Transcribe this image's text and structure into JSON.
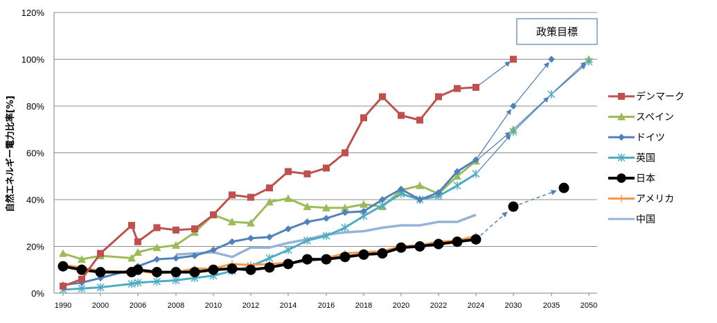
{
  "chart_data": {
    "type": "line",
    "ylabel": "自然エネルギー電力比率[%]",
    "y_ticks": [
      "0%",
      "20%",
      "40%",
      "60%",
      "80%",
      "100%",
      "120%"
    ],
    "ylim": [
      0,
      120
    ],
    "x_ticks": [
      "1990",
      "2000",
      "2006",
      "2008",
      "2010",
      "2012",
      "2014",
      "2016",
      "2018",
      "2020",
      "2022",
      "2024",
      "2030",
      "2035",
      "2050"
    ],
    "grid": "horizontal",
    "legend_position": "right",
    "annotation": "政策目標",
    "series": [
      {
        "name": "デンマーク",
        "color": "#c0504d",
        "marker": "square",
        "points": [
          [
            1990,
            3
          ],
          [
            1995,
            6
          ],
          [
            2000,
            17
          ],
          [
            2005,
            29
          ],
          [
            2006,
            22
          ],
          [
            2007,
            28
          ],
          [
            2008,
            27
          ],
          [
            2009,
            27.5
          ],
          [
            2010,
            33.5
          ],
          [
            2011,
            42
          ],
          [
            2012,
            41
          ],
          [
            2013,
            45
          ],
          [
            2014,
            52
          ],
          [
            2015,
            51
          ],
          [
            2016,
            53.5
          ],
          [
            2017,
            60
          ],
          [
            2018,
            75
          ],
          [
            2019,
            84
          ],
          [
            2020,
            76
          ],
          [
            2021,
            74
          ],
          [
            2022,
            84
          ],
          [
            2023,
            87.5
          ],
          [
            2024,
            88
          ]
        ],
        "targets": [
          [
            2030,
            100
          ]
        ]
      },
      {
        "name": "スペイン",
        "color": "#9bbb59",
        "marker": "triangle",
        "points": [
          [
            1990,
            17
          ],
          [
            1995,
            14.5
          ],
          [
            2000,
            16
          ],
          [
            2005,
            15
          ],
          [
            2006,
            17.5
          ],
          [
            2007,
            19.5
          ],
          [
            2008,
            20.5
          ],
          [
            2009,
            26
          ],
          [
            2010,
            33.5
          ],
          [
            2011,
            30.5
          ],
          [
            2012,
            30
          ],
          [
            2013,
            39
          ],
          [
            2014,
            40.5
          ],
          [
            2015,
            37
          ],
          [
            2016,
            36.5
          ],
          [
            2017,
            36.5
          ],
          [
            2018,
            38
          ],
          [
            2019,
            37
          ],
          [
            2020,
            44
          ],
          [
            2021,
            46
          ],
          [
            2022,
            42.5
          ],
          [
            2023,
            50
          ],
          [
            2024,
            56.5
          ]
        ],
        "targets": [
          [
            2030,
            70
          ],
          [
            2050,
            100
          ]
        ]
      },
      {
        "name": "ドイツ",
        "color": "#4f81bd",
        "marker": "diamond",
        "points": [
          [
            1990,
            3.5
          ],
          [
            1995,
            4.5
          ],
          [
            2000,
            6.5
          ],
          [
            2005,
            10
          ],
          [
            2006,
            11.5
          ],
          [
            2007,
            14.5
          ],
          [
            2008,
            15
          ],
          [
            2009,
            16
          ],
          [
            2010,
            18.5
          ],
          [
            2011,
            22
          ],
          [
            2012,
            23.5
          ],
          [
            2013,
            24
          ],
          [
            2014,
            27.5
          ],
          [
            2015,
            30.5
          ],
          [
            2016,
            32
          ],
          [
            2017,
            34.5
          ],
          [
            2018,
            35
          ],
          [
            2019,
            40
          ],
          [
            2020,
            44.5
          ],
          [
            2021,
            40
          ],
          [
            2022,
            43
          ],
          [
            2023,
            52
          ],
          [
            2024,
            57
          ]
        ],
        "targets": [
          [
            2030,
            80
          ],
          [
            2035,
            100
          ]
        ]
      },
      {
        "name": "英国",
        "color": "#4bacc6",
        "marker": "star",
        "points": [
          [
            1990,
            1.5
          ],
          [
            1995,
            2
          ],
          [
            2000,
            2.5
          ],
          [
            2005,
            4
          ],
          [
            2006,
            4.5
          ],
          [
            2007,
            5
          ],
          [
            2008,
            5.5
          ],
          [
            2009,
            6.5
          ],
          [
            2010,
            7.5
          ],
          [
            2011,
            9.5
          ],
          [
            2012,
            11.5
          ],
          [
            2013,
            15
          ],
          [
            2014,
            18.5
          ],
          [
            2015,
            22.5
          ],
          [
            2016,
            24.5
          ],
          [
            2017,
            28
          ],
          [
            2018,
            33
          ],
          [
            2019,
            37.5
          ],
          [
            2020,
            42.5
          ],
          [
            2021,
            40
          ],
          [
            2022,
            41.5
          ],
          [
            2023,
            46
          ],
          [
            2024,
            51
          ]
        ],
        "targets": [
          [
            2030,
            69
          ],
          [
            2035,
            85
          ],
          [
            2050,
            99
          ]
        ]
      },
      {
        "name": "日本",
        "color": "#000000",
        "marker": "circle",
        "points": [
          [
            1990,
            11.5
          ],
          [
            1995,
            10
          ],
          [
            2000,
            9
          ],
          [
            2005,
            9
          ],
          [
            2006,
            10
          ],
          [
            2007,
            9
          ],
          [
            2008,
            9
          ],
          [
            2009,
            9
          ],
          [
            2010,
            10
          ],
          [
            2011,
            10.5
          ],
          [
            2012,
            10
          ],
          [
            2013,
            11
          ],
          [
            2014,
            12.5
          ],
          [
            2015,
            14.5
          ],
          [
            2016,
            14.5
          ],
          [
            2017,
            15.5
          ],
          [
            2018,
            16.5
          ],
          [
            2019,
            17
          ],
          [
            2020,
            19.5
          ],
          [
            2021,
            20
          ],
          [
            2022,
            21
          ],
          [
            2023,
            22
          ],
          [
            2024,
            23
          ]
        ],
        "targets": [
          [
            2030,
            37
          ],
          [
            2040,
            45
          ]
        ]
      },
      {
        "name": "アメリカ",
        "color": "#f79646",
        "marker": "plus",
        "points": [
          [
            1990,
            12
          ],
          [
            1995,
            11
          ],
          [
            2000,
            9.5
          ],
          [
            2005,
            9
          ],
          [
            2006,
            9.5
          ],
          [
            2007,
            8.5
          ],
          [
            2008,
            9
          ],
          [
            2009,
            10.5
          ],
          [
            2010,
            10.5
          ],
          [
            2011,
            12.5
          ],
          [
            2012,
            12
          ],
          [
            2013,
            12.5
          ],
          [
            2014,
            13
          ],
          [
            2015,
            13.5
          ],
          [
            2016,
            15
          ],
          [
            2017,
            17
          ],
          [
            2018,
            17.5
          ],
          [
            2019,
            18
          ],
          [
            2020,
            20
          ],
          [
            2021,
            20.5
          ],
          [
            2022,
            22
          ],
          [
            2023,
            22.5
          ],
          [
            2024,
            24.5
          ]
        ],
        "targets": []
      },
      {
        "name": "中国",
        "color": "#95b3d7",
        "marker": "none",
        "points": [
          [
            2008,
            16.5
          ],
          [
            2009,
            17
          ],
          [
            2010,
            17.5
          ],
          [
            2011,
            15.5
          ],
          [
            2012,
            19.5
          ],
          [
            2013,
            19.5
          ],
          [
            2014,
            21.5
          ],
          [
            2015,
            23
          ],
          [
            2016,
            25
          ],
          [
            2017,
            26
          ],
          [
            2018,
            26.5
          ],
          [
            2019,
            28
          ],
          [
            2020,
            29
          ],
          [
            2021,
            29
          ],
          [
            2022,
            30.5
          ],
          [
            2023,
            30.5
          ],
          [
            2024,
            33.5
          ]
        ],
        "targets": []
      }
    ]
  }
}
